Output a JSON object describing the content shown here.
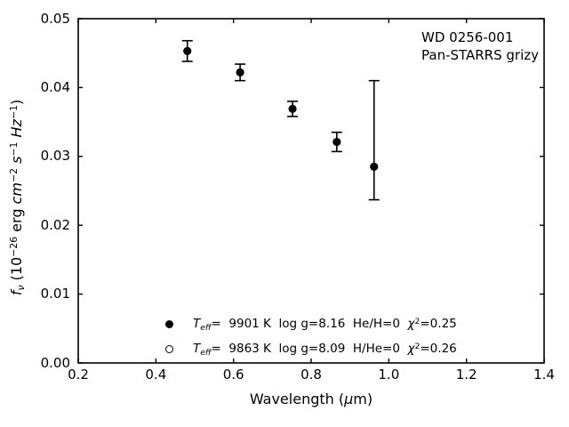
{
  "figure": {
    "background": "#ffffff",
    "foreground": "#000000"
  },
  "annotation": {
    "lines": [
      "WD 0256-001",
      "Pan-STARRS grizy"
    ]
  },
  "x_axis": {
    "label_segments": [
      {
        "t": "Wavelength ("
      },
      {
        "t": "μ",
        "italic": true
      },
      {
        "t": "m)"
      }
    ],
    "tick_labels": [
      "0.2",
      "0.4",
      "0.6",
      "0.8",
      "1.0",
      "1.2",
      "1.4"
    ]
  },
  "y_axis": {
    "label_segments": [
      {
        "t": "f",
        "italic": true
      },
      {
        "t": "ν",
        "sub": true,
        "italic": true
      },
      {
        "t": " (10"
      },
      {
        "t": "−26",
        "sup": true
      },
      {
        "t": " erg "
      },
      {
        "t": "cm",
        "italic": true
      },
      {
        "t": "−2",
        "sup": true
      },
      {
        "t": " "
      },
      {
        "t": "s",
        "italic": true
      },
      {
        "t": "−1",
        "sup": true
      },
      {
        "t": " "
      },
      {
        "t": "Hz",
        "italic": true
      },
      {
        "t": "−1",
        "sup": true
      },
      {
        "t": ")"
      }
    ],
    "tick_labels": [
      "0.00",
      "0.01",
      "0.02",
      "0.03",
      "0.04",
      "0.05"
    ]
  },
  "legend": {
    "rows": [
      {
        "marker": "filled-circle",
        "segments": [
          {
            "t": "T",
            "italic": true
          },
          {
            "t": "eff",
            "sub": true,
            "italic": true
          },
          {
            "t": "=  9901 K  log g=8.16  He/H=0  "
          },
          {
            "t": "χ",
            "italic": true
          },
          {
            "t": "2",
            "sup": true
          },
          {
            "t": "=0.25"
          }
        ]
      },
      {
        "marker": "open-circle",
        "segments": [
          {
            "t": "T",
            "italic": true
          },
          {
            "t": "eff",
            "sub": true,
            "italic": true
          },
          {
            "t": "=  9863 K  log g=8.09  H/He=0  "
          },
          {
            "t": "χ",
            "italic": true
          },
          {
            "t": "2",
            "sup": true
          },
          {
            "t": "=0.26"
          }
        ]
      }
    ]
  },
  "chart_data": {
    "type": "scatter",
    "title": "",
    "xlabel": "Wavelength (μm)",
    "ylabel": "fν (10⁻²⁶ erg cm⁻² s⁻¹ Hz⁻¹)",
    "xlim": [
      0.2,
      1.4
    ],
    "ylim": [
      0.0,
      0.05
    ],
    "x_ticks": [
      0.2,
      0.4,
      0.6,
      0.8,
      1.0,
      1.2,
      1.4
    ],
    "y_ticks": [
      0.0,
      0.01,
      0.02,
      0.03,
      0.04,
      0.05
    ],
    "grid": false,
    "tick_direction": "in",
    "legend_position": "lower-center-inside",
    "annotation_text": [
      "WD 0256-001",
      "Pan-STARRS grizy"
    ],
    "series": [
      {
        "name": "Teff= 9901 K  log g=8.16  He/H=0  χ²=0.25",
        "marker": "filled-circle",
        "color": "#000000",
        "points": [
          {
            "x": 0.481,
            "y": 0.0453,
            "err_plus": 0.0015,
            "err_minus": 0.0015
          },
          {
            "x": 0.617,
            "y": 0.0422,
            "err_plus": 0.0012,
            "err_minus": 0.0012
          },
          {
            "x": 0.752,
            "y": 0.0369,
            "err_plus": 0.0011,
            "err_minus": 0.0011
          },
          {
            "x": 0.866,
            "y": 0.0321,
            "err_plus": 0.0014,
            "err_minus": 0.0014
          },
          {
            "x": 0.962,
            "y": 0.0285,
            "err_plus": 0.0125,
            "err_minus": 0.0048
          }
        ]
      },
      {
        "name": "Teff= 9863 K  log g=8.09  H/He=0  χ²=0.26",
        "marker": "open-circle",
        "color": "#000000",
        "points": []
      }
    ]
  }
}
